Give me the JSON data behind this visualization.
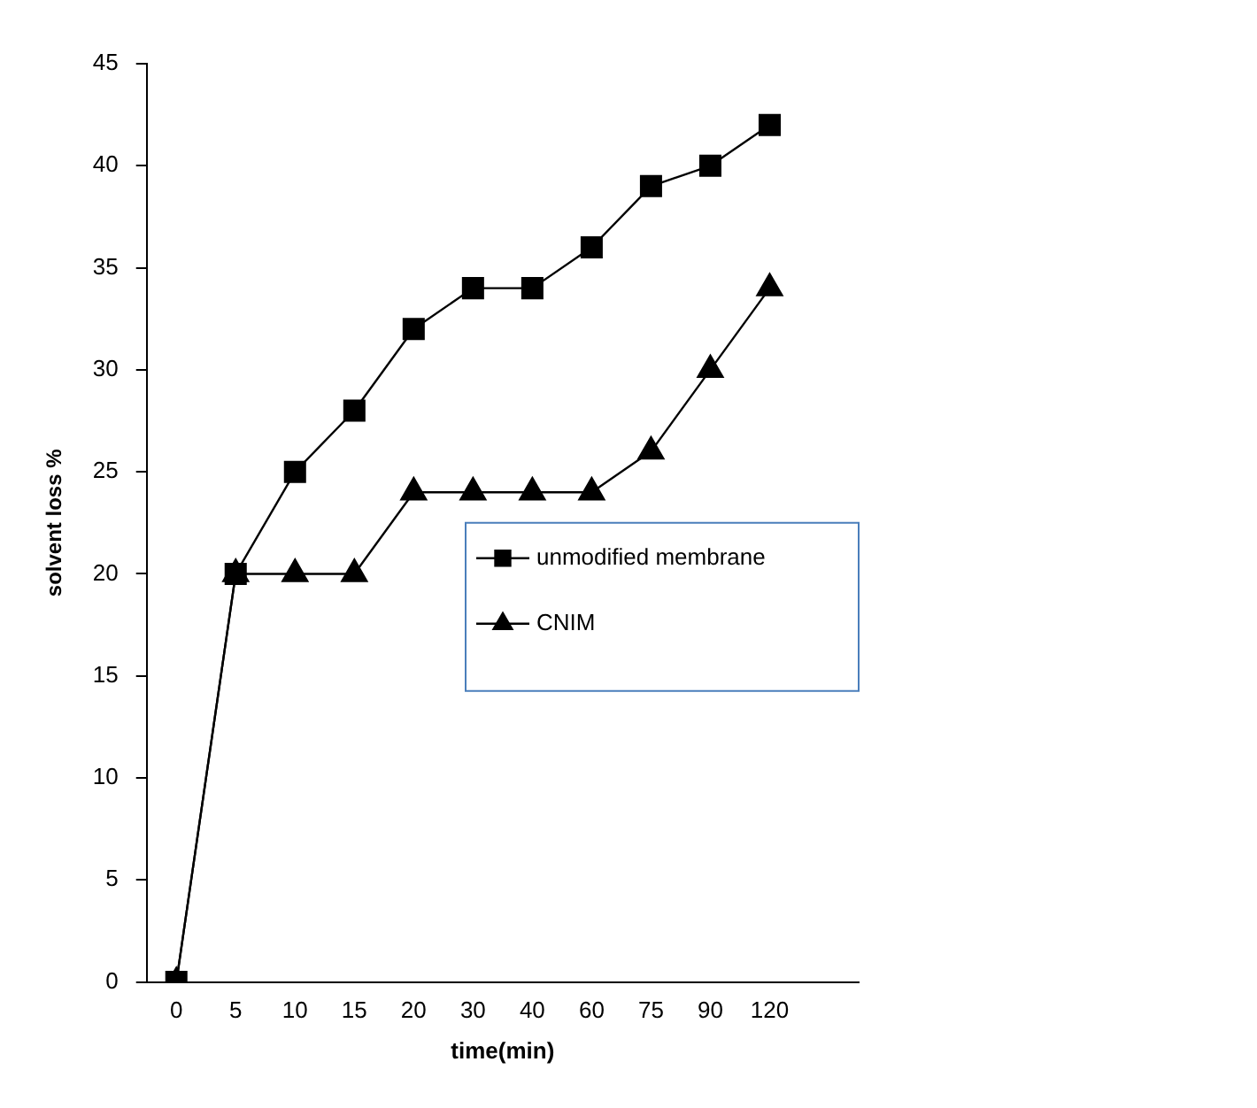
{
  "chart_data": {
    "type": "line",
    "xlabel": "time(min)",
    "ylabel": "solvent loss %",
    "categories": [
      "0",
      "5",
      "10",
      "15",
      "20",
      "30",
      "40",
      "60",
      "75",
      "90",
      "120",
      null
    ],
    "series": [
      {
        "name": "unmodified membrane",
        "color": "#000000",
        "marker": "square",
        "values": [
          0,
          20,
          25,
          28,
          32,
          34,
          34,
          36,
          39,
          40,
          42,
          null
        ]
      },
      {
        "name": "CNIM",
        "color": "#000000",
        "marker": "triangle",
        "values": [
          0,
          20,
          20,
          20,
          24,
          24,
          24,
          24,
          26,
          30,
          34,
          null
        ]
      }
    ],
    "ylim": [
      0,
      45
    ],
    "yticks": [
      0,
      5,
      10,
      15,
      20,
      25,
      30,
      35,
      40,
      45
    ],
    "grid": false,
    "legend": "right",
    "line_style": "solid"
  }
}
